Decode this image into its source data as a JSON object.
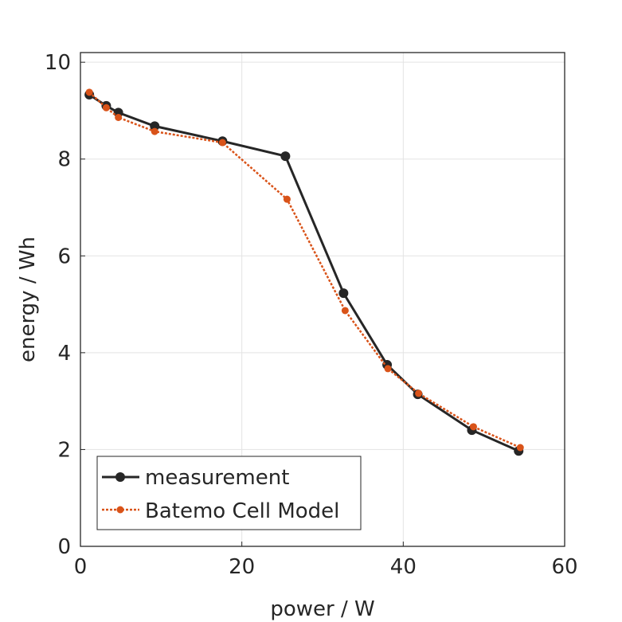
{
  "chart_data": {
    "type": "line",
    "title": "",
    "xlabel": "power / W",
    "ylabel": "energy / Wh",
    "xlim": [
      0,
      60
    ],
    "ylim": [
      0,
      10.2
    ],
    "xticks": [
      0,
      20,
      40,
      60
    ],
    "yticks": [
      0,
      2,
      4,
      6,
      8,
      10
    ],
    "grid": true,
    "legend_position": "bottom-left",
    "series": [
      {
        "name": "measurement",
        "color": "#262626",
        "style": "solid",
        "x": [
          1.1,
          3.2,
          4.7,
          9.2,
          17.6,
          25.4,
          32.6,
          38.0,
          41.8,
          48.5,
          54.3
        ],
        "y": [
          9.33,
          9.1,
          8.96,
          8.68,
          8.37,
          8.06,
          5.23,
          3.75,
          3.14,
          2.4,
          1.97
        ]
      },
      {
        "name": "Batemo Cell Model",
        "color": "#D95319",
        "style": "dotted",
        "x": [
          1.1,
          3.2,
          4.7,
          9.2,
          17.6,
          25.6,
          32.8,
          38.1,
          41.9,
          48.7,
          54.5
        ],
        "y": [
          9.38,
          9.06,
          8.86,
          8.57,
          8.34,
          7.17,
          4.87,
          3.67,
          3.16,
          2.47,
          2.04
        ]
      }
    ]
  }
}
